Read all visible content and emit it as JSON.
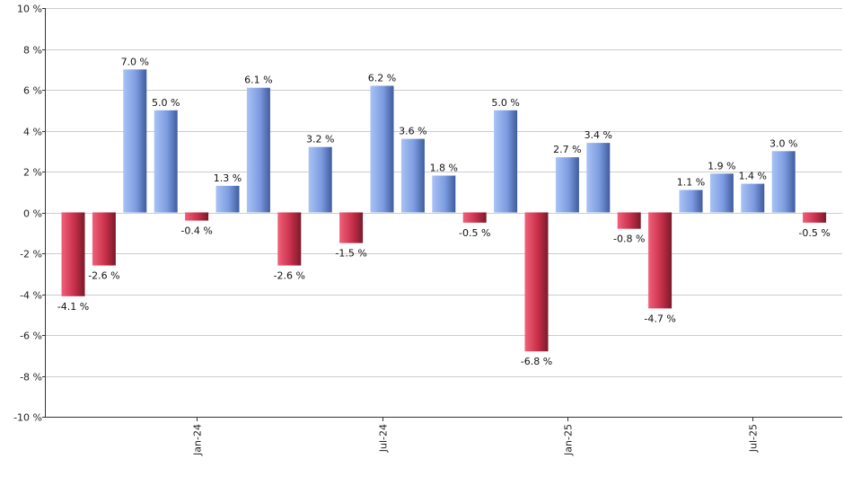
{
  "chart_data": {
    "type": "bar",
    "title": "",
    "xlabel": "",
    "ylabel": "",
    "ylim": [
      -10,
      10
    ],
    "yticks": [
      -10,
      -8,
      -6,
      -4,
      -2,
      0,
      2,
      4,
      6,
      8,
      10
    ],
    "ytick_labels": [
      "-10 %",
      "-8 %",
      "-6 %",
      "-4 %",
      "-2 %",
      "0 %",
      "2 %",
      "4 %",
      "6 %",
      "8 %",
      "10 %"
    ],
    "grid": true,
    "legend": "none",
    "x_tick_labels": [
      {
        "index": 4,
        "label": "Jan-24"
      },
      {
        "index": 10,
        "label": "Jul-24"
      },
      {
        "index": 16,
        "label": "Jan-25"
      },
      {
        "index": 22,
        "label": "Jul-25"
      }
    ],
    "values": [
      -4.1,
      -2.6,
      7.0,
      5.0,
      -0.4,
      1.3,
      6.1,
      -2.6,
      3.2,
      -1.5,
      6.2,
      3.6,
      1.8,
      -0.5,
      5.0,
      -6.8,
      2.7,
      3.4,
      -0.8,
      -4.7,
      1.1,
      1.9,
      1.4,
      3.0,
      -0.5
    ],
    "data_labels": [
      "-4.1 %",
      "-2.6 %",
      "7.0 %",
      "5.0 %",
      "-0.4 %",
      "1.3 %",
      "6.1 %",
      "-2.6 %",
      "3.2 %",
      "-1.5 %",
      "6.2 %",
      "3.6 %",
      "1.8 %",
      "-0.5 %",
      "5.0 %",
      "-6.8 %",
      "2.7 %",
      "3.4 %",
      "-0.8 %",
      "-4.7 %",
      "1.1 %",
      "1.9 %",
      "1.4 %",
      "3.0 %",
      "-0.5 %"
    ],
    "colors": {
      "positive": "#7f9fe0",
      "negative": "#c8304a",
      "grid": "#cccccc",
      "axis": "#333333"
    }
  }
}
